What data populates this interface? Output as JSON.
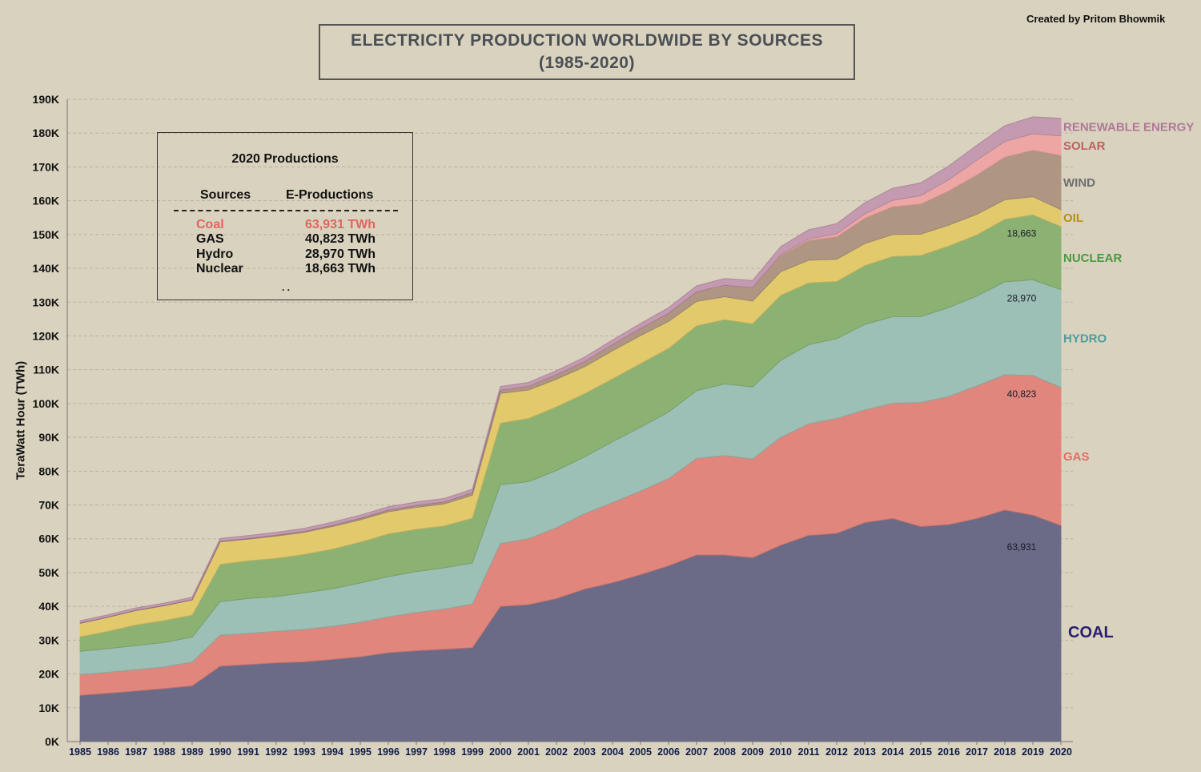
{
  "credit": "Created by Pritom Bhowmik",
  "title_line1": "ELECTRICITY PRODUCTION WORLDWIDE BY SOURCES",
  "title_line2": "(1985-2020)",
  "table": {
    "title": "2020 Productions",
    "col_sources": "Sources",
    "col_productions": "E-Productions",
    "rows": [
      {
        "source": "Coal",
        "value": "63,931 TWh"
      },
      {
        "source": "GAS",
        "value": "40,823 TWh"
      },
      {
        "source": "Hydro",
        "value": "28,970 TWh"
      },
      {
        "source": "Nuclear",
        "value": "18,663 TWh"
      }
    ],
    "footer": ". ."
  },
  "chart_data": {
    "type": "area",
    "stacked": true,
    "title": "ELECTRICITY PRODUCTION WORLDWIDE BY SOURCES (1985-2020)",
    "xlabel": "",
    "ylabel": "TeraWatt Hour (TWh)",
    "ylim": [
      0,
      190000
    ],
    "yticks": [
      0,
      10000,
      20000,
      30000,
      40000,
      50000,
      60000,
      70000,
      80000,
      90000,
      100000,
      110000,
      120000,
      130000,
      140000,
      150000,
      160000,
      170000,
      180000,
      190000
    ],
    "ytick_labels": [
      "0K",
      "10K",
      "20K",
      "30K",
      "40K",
      "50K",
      "60K",
      "70K",
      "80K",
      "90K",
      "100K",
      "110K",
      "120K",
      "130K",
      "140K",
      "150K",
      "160K",
      "170K",
      "180K",
      "190K"
    ],
    "grid": true,
    "x": [
      "1985",
      "1986",
      "1987",
      "1988",
      "1989",
      "1990",
      "1991",
      "1992",
      "1993",
      "1994",
      "1995",
      "1996",
      "1997",
      "1998",
      "1999",
      "2000",
      "2001",
      "2002",
      "2003",
      "2004",
      "2005",
      "2006",
      "2007",
      "2008",
      "2009",
      "2010",
      "2011",
      "2012",
      "2013",
      "2014",
      "2015",
      "2016",
      "2017",
      "2018",
      "2019",
      "2020"
    ],
    "series": [
      {
        "name": "COAL",
        "color": "#6b6a87",
        "label_color": "#2a1e6e",
        "values": [
          13700,
          14300,
          15000,
          15700,
          16500,
          22300,
          22800,
          23300,
          23600,
          24300,
          25100,
          26300,
          26900,
          27300,
          27800,
          40000,
          40500,
          42300,
          45100,
          47000,
          49400,
          52000,
          55200,
          55200,
          54400,
          58100,
          61000,
          61600,
          64800,
          66000,
          63600,
          64200,
          66000,
          68500,
          67000,
          63931
        ]
      },
      {
        "name": "GAS",
        "color": "#e0867c",
        "label_color": "#e07060",
        "values": [
          6100,
          6200,
          6300,
          6400,
          7000,
          9200,
          9200,
          9300,
          9600,
          9800,
          10200,
          10600,
          11300,
          11900,
          12900,
          18600,
          19500,
          21000,
          22300,
          23700,
          24700,
          25800,
          28600,
          29400,
          29200,
          31900,
          33000,
          34000,
          33300,
          34100,
          36700,
          37900,
          39200,
          40000,
          41300,
          40823
        ]
      },
      {
        "name": "HYDRO",
        "color": "#9cbfb6",
        "label_color": "#4aa0a0",
        "values": [
          6900,
          7000,
          7100,
          7200,
          7400,
          9900,
          10300,
          10300,
          10800,
          11100,
          11600,
          11900,
          12100,
          12200,
          12100,
          17400,
          16900,
          16900,
          16800,
          18000,
          18900,
          19700,
          20000,
          21200,
          21300,
          22800,
          23400,
          23600,
          25300,
          25600,
          25400,
          26300,
          26600,
          27500,
          28300,
          28970
        ]
      },
      {
        "name": "NUCLEAR",
        "color": "#8bb272",
        "label_color": "#4a9a40",
        "values": [
          4300,
          5100,
          6100,
          6500,
          6500,
          11000,
          11200,
          11300,
          11400,
          11700,
          12100,
          12600,
          12500,
          12400,
          13300,
          18200,
          18700,
          18800,
          18700,
          18600,
          18800,
          18800,
          19200,
          19000,
          18700,
          19200,
          18300,
          16900,
          17400,
          17800,
          18100,
          18200,
          18100,
          18500,
          19200,
          18663
        ]
      },
      {
        "name": "OIL",
        "color": "#e2c96c",
        "label_color": "#b8900a",
        "values": [
          4000,
          4200,
          4300,
          4400,
          4500,
          6700,
          6400,
          6600,
          6500,
          6700,
          6600,
          6600,
          6500,
          6500,
          6800,
          8800,
          8400,
          8200,
          8000,
          8300,
          8300,
          8000,
          7200,
          6800,
          6700,
          7000,
          6700,
          6600,
          6500,
          6500,
          6300,
          6200,
          6100,
          5800,
          5400,
          5000
        ]
      },
      {
        "name": "WIND",
        "color": "#ae9682",
        "label_color": "#6e6e6e",
        "values": [
          0,
          0,
          0,
          0,
          0,
          100,
          150,
          200,
          250,
          350,
          400,
          450,
          500,
          550,
          650,
          850,
          1000,
          1200,
          1400,
          1700,
          2000,
          2300,
          2700,
          3300,
          3900,
          4700,
          5800,
          6600,
          7500,
          8200,
          8900,
          10100,
          11600,
          12600,
          13700,
          16000
        ]
      },
      {
        "name": "SOLAR",
        "color": "#eea6a4",
        "label_color": "#c06060",
        "values": [
          0,
          0,
          0,
          0,
          0,
          0,
          0,
          0,
          0,
          0,
          0,
          0,
          0,
          0,
          0,
          100,
          100,
          100,
          100,
          100,
          100,
          100,
          100,
          100,
          100,
          300,
          500,
          900,
          1300,
          1900,
          2500,
          3300,
          4400,
          4600,
          4900,
          5800
        ]
      },
      {
        "name": "RENEWABLE ENERGY",
        "color": "#c39ab0",
        "label_color": "#b07898",
        "values": [
          700,
          720,
          740,
          760,
          780,
          850,
          880,
          900,
          930,
          960,
          1000,
          1020,
          1060,
          1080,
          1120,
          1100,
          1150,
          1230,
          1300,
          1400,
          1500,
          1650,
          1800,
          2000,
          2100,
          2400,
          2700,
          3000,
          3300,
          3600,
          3800,
          4100,
          4400,
          4700,
          5000,
          5200
        ]
      }
    ],
    "value_annotations_2019": [
      "63,931",
      "40,823",
      "28,970",
      "18,663"
    ]
  }
}
